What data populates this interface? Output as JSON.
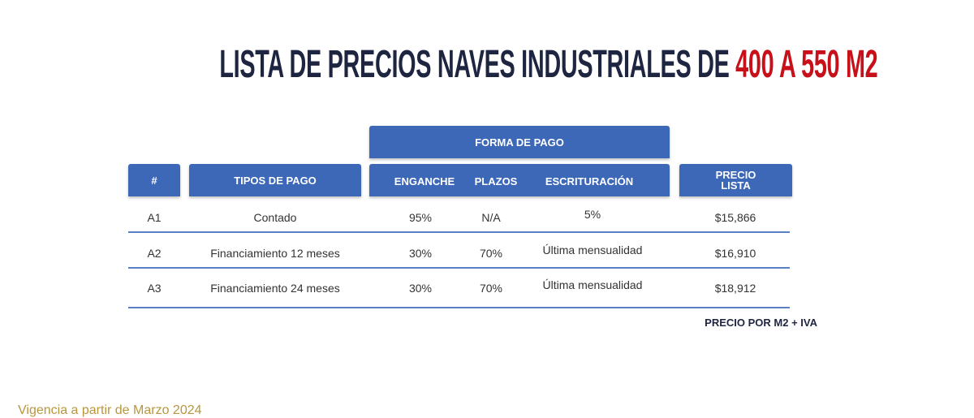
{
  "title": {
    "main": "LISTA DE PRECIOS NAVES INDUSTRIALES DE",
    "highlight": "400 A 550 M2"
  },
  "table": {
    "group_header": "FORMA DE PAGO",
    "columns": [
      "#",
      "TIPOS DE PAGO",
      "ENGANCHE",
      "PLAZOS",
      "ESCRITURACIÓN",
      "PRECIO LISTA"
    ],
    "rows": [
      [
        "A1",
        "Contado",
        "95%",
        "N/A",
        "5%",
        "$15,866"
      ],
      [
        "A2",
        "Financiamiento 12 meses",
        "30%",
        "70%",
        "Última mensualidad",
        "$16,910"
      ],
      [
        "A3",
        "Financiamiento 24 meses",
        "30%",
        "70%",
        "Última mensualidad",
        "$18,912"
      ]
    ]
  },
  "note": "PRECIO POR M2 + IVA",
  "footer": "Vigencia a partir de Marzo 2024"
}
